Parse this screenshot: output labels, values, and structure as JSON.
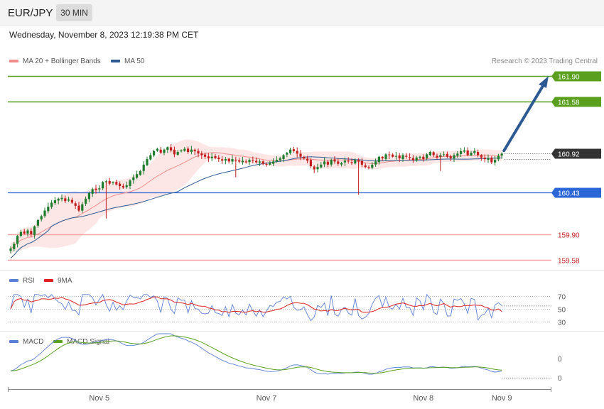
{
  "header": {
    "symbol": "EUR/JPY",
    "timeframe": "30 MIN"
  },
  "timestamp": "Wednesday, November 8, 2023 12:19:38 PM CET",
  "credit": "Research © 2023 Trading Central",
  "colors": {
    "ma20": "#f08c8c",
    "ma50": "#2e5a93",
    "bands": "#fde3e3",
    "up": "#1e7d2c",
    "down": "#c41e1e",
    "resistance": "#5aa01e",
    "pivot": "#2a66d6",
    "support": "#f4a3a3",
    "current": "#333333",
    "rsi": "#5b7fd6",
    "rsi_ma": "#e02020",
    "macd": "#5b7fd6",
    "macd_signal": "#5aa01e"
  },
  "chart_data": [
    {
      "type": "candlestick",
      "legend": [
        {
          "label": "MA 20 + Bollinger Bands",
          "color": "#f08c8c"
        },
        {
          "label": "MA 50",
          "color": "#2e5a93"
        }
      ],
      "levels": [
        {
          "value": 161.9,
          "label": "161.90",
          "kind": "resistance"
        },
        {
          "value": 161.58,
          "label": "161.58",
          "kind": "resistance"
        },
        {
          "value": 160.92,
          "label": "160.92",
          "kind": "current"
        },
        {
          "value": 160.43,
          "label": "160.43",
          "kind": "pivot"
        },
        {
          "value": 159.9,
          "label": "159.90",
          "kind": "support"
        },
        {
          "value": 159.58,
          "label": "159.58",
          "kind": "support"
        }
      ],
      "x_labels": [
        "Nov 5",
        "Nov 7",
        "Nov 8",
        "Nov 9"
      ],
      "x_label_bar_index": [
        26,
        75,
        121,
        144
      ],
      "bars_count": 145,
      "closes": [
        159.72,
        159.78,
        159.88,
        159.93,
        159.91,
        159.95,
        159.9,
        160.0,
        160.08,
        160.13,
        160.2,
        160.25,
        160.3,
        160.33,
        160.35,
        160.36,
        160.32,
        160.34,
        160.3,
        160.26,
        160.2,
        160.28,
        160.35,
        160.42,
        160.47,
        160.46,
        160.48,
        160.56,
        160.57,
        160.54,
        160.56,
        160.53,
        160.51,
        160.49,
        160.52,
        160.58,
        160.62,
        160.66,
        160.7,
        160.78,
        160.85,
        160.9,
        160.95,
        160.98,
        160.93,
        160.97,
        161.0,
        160.96,
        160.91,
        160.94,
        160.96,
        160.98,
        160.94,
        160.97,
        160.95,
        160.92,
        160.9,
        160.88,
        160.86,
        160.88,
        160.86,
        160.85,
        160.83,
        160.85,
        160.82,
        160.85,
        160.84,
        160.82,
        160.83,
        160.81,
        160.84,
        160.83,
        160.81,
        160.82,
        160.79,
        160.78,
        160.8,
        160.82,
        160.84,
        160.86,
        160.9,
        160.93,
        160.97,
        160.95,
        160.92,
        160.88,
        160.86,
        160.83,
        160.76,
        160.72,
        160.75,
        160.78,
        160.82,
        160.78,
        160.84,
        160.82,
        160.79,
        160.8,
        160.83,
        160.82,
        160.8,
        160.84,
        160.82,
        160.78,
        160.75,
        160.74,
        160.78,
        160.82,
        160.88,
        160.86,
        160.91,
        160.9,
        160.88,
        160.89,
        160.86,
        160.9,
        160.88,
        160.87,
        160.84,
        160.87,
        160.88,
        160.85,
        160.91,
        160.94,
        160.9,
        160.87,
        160.9,
        160.91,
        160.88,
        160.86,
        160.9,
        160.92,
        160.95,
        160.96,
        160.9,
        160.93,
        160.95,
        160.9,
        160.87,
        160.85,
        160.86,
        160.81,
        160.84,
        160.89,
        160.92
      ],
      "ma20_last": 160.9,
      "ma50_last": 160.87
    },
    {
      "type": "line",
      "name": "RSI panel",
      "legend": [
        {
          "label": "RSI",
          "color": "#5b7fd6"
        },
        {
          "label": "9MA",
          "color": "#e02020"
        }
      ],
      "y_ticks": [
        70,
        50,
        30
      ],
      "ylim": [
        25,
        80
      ],
      "rsi_last": 55,
      "rsi_ma_last": 46
    },
    {
      "type": "line",
      "name": "MACD panel",
      "legend": [
        {
          "label": "MACD",
          "color": "#5b7fd6"
        },
        {
          "label": "MACD Signal",
          "color": "#5aa01e"
        }
      ],
      "y_ticks": [
        "0",
        "0"
      ]
    }
  ]
}
